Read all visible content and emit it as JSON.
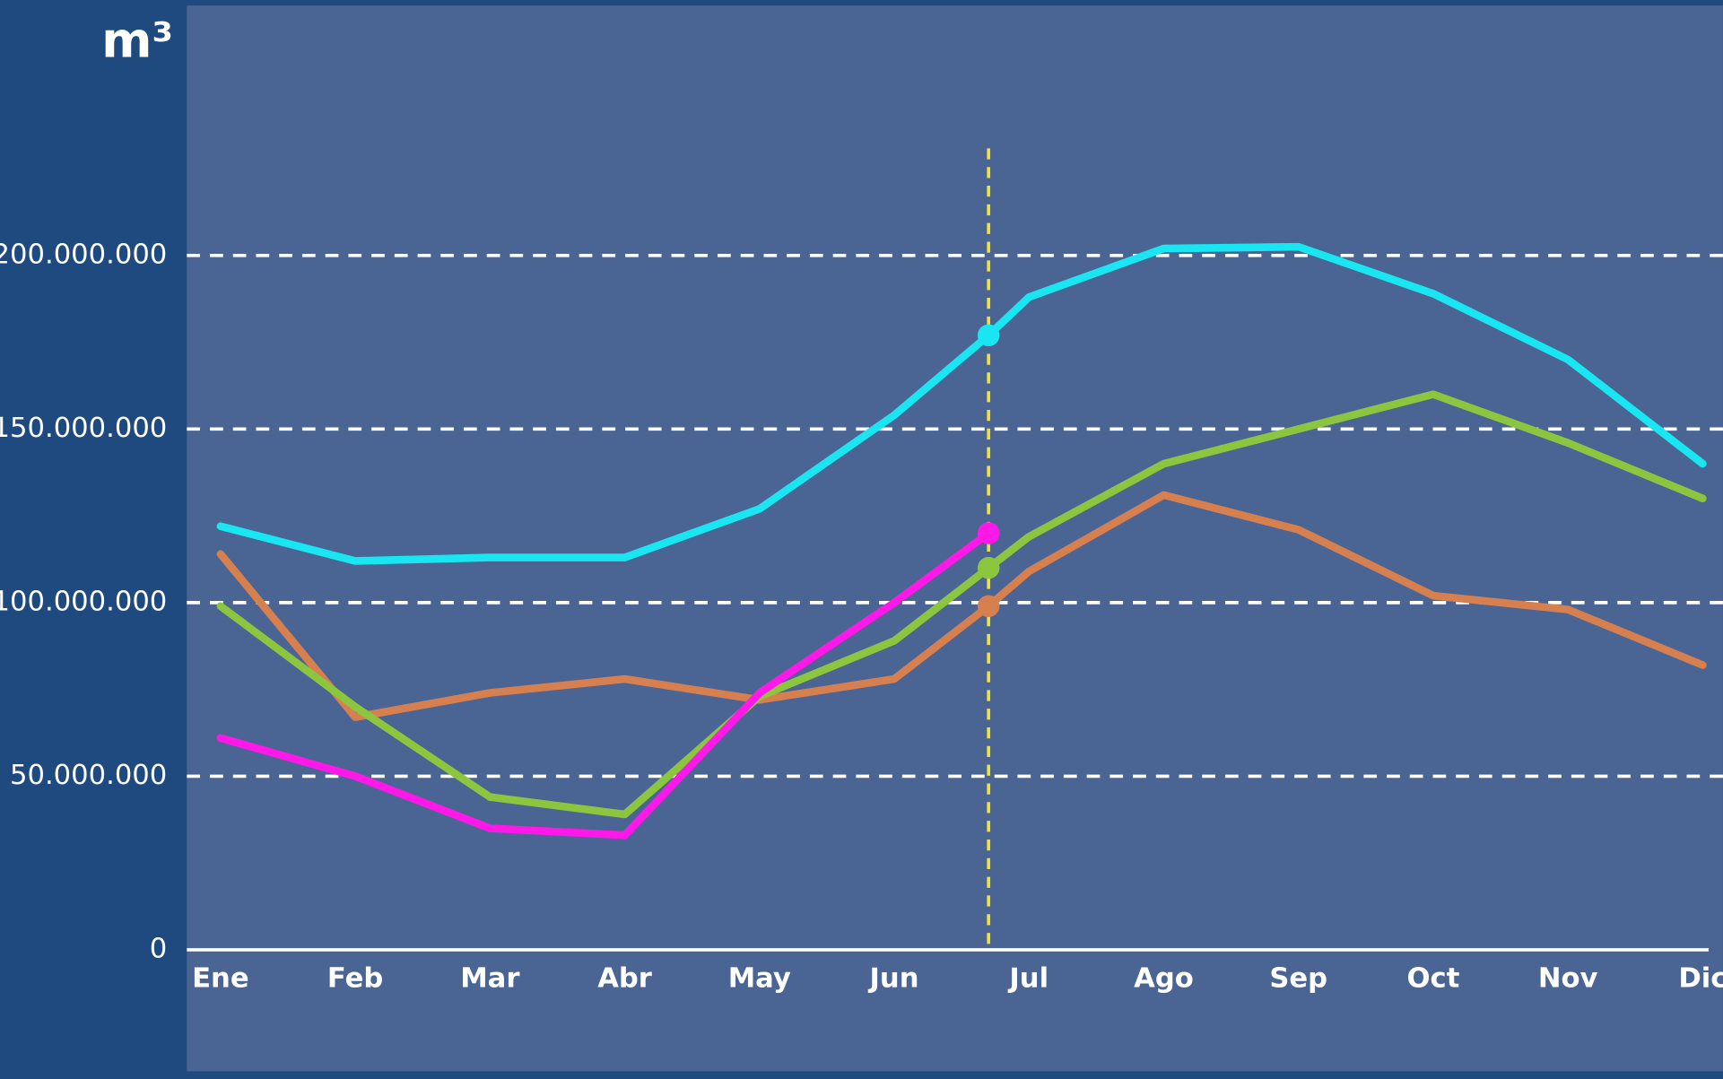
{
  "chart_data": {
    "type": "line",
    "ylabel": "m³",
    "x": [
      0,
      1,
      2,
      3,
      4,
      5,
      5.7,
      6,
      7,
      8,
      9,
      10,
      11
    ],
    "xlim": [
      -0.25,
      11.15
    ],
    "xticks": [
      {
        "value": 0,
        "label": "Ene"
      },
      {
        "value": 1,
        "label": "Feb"
      },
      {
        "value": 2,
        "label": "Mar"
      },
      {
        "value": 3,
        "label": "Abr"
      },
      {
        "value": 4,
        "label": "May"
      },
      {
        "value": 5,
        "label": "Jun"
      },
      {
        "value": 6,
        "label": "Jul"
      },
      {
        "value": 7,
        "label": "Ago"
      },
      {
        "value": 8,
        "label": "Sep"
      },
      {
        "value": 9,
        "label": "Oct"
      },
      {
        "value": 10,
        "label": "Nov"
      },
      {
        "value": 11,
        "label": "Dic"
      }
    ],
    "ylim": [
      -35000000,
      272000000
    ],
    "yticks": [
      0,
      {
        "value": 50000000,
        "label": "50.000.000"
      },
      {
        "value": 100000000,
        "label": "100.000.000"
      },
      {
        "value": 150000000,
        "label": "150.000.000"
      },
      {
        "value": 200000000,
        "label": "200.000.000"
      }
    ],
    "grid": true,
    "marker_x": 5.7,
    "marker_color": "#f0e040",
    "series": [
      {
        "color": "#19e6f0",
        "values": [
          122000000,
          112000000,
          113000000,
          113000000,
          127000000,
          154000000,
          177000000,
          188000000,
          202000000,
          202500000,
          189000000,
          170000000,
          140000000
        ]
      },
      {
        "color": "#d7804f",
        "values": [
          114000000,
          67000000,
          74000000,
          78000000,
          72000000,
          78000000,
          99000000,
          109000000,
          131000000,
          121000000,
          102000000,
          98000000,
          82000000
        ]
      },
      {
        "color": "#8cc63f",
        "values": [
          99000000,
          70000000,
          44000000,
          39000000,
          73000000,
          89000000,
          110000000,
          119000000,
          140000000,
          150000000,
          160000000,
          146000000,
          130000000
        ]
      },
      {
        "color": "#ff19e8",
        "values": [
          61000000,
          50000000,
          35000000,
          33000000,
          74000000,
          100000000,
          120000000,
          null,
          null,
          null,
          null,
          null,
          null
        ]
      }
    ]
  }
}
